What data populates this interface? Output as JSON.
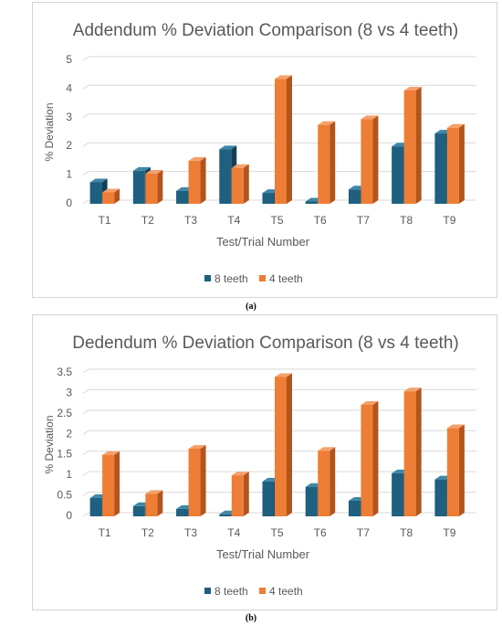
{
  "colors": {
    "series_8": "#1f5f7f",
    "series_8_side": "#123f56",
    "series_8_top": "#3f87a8",
    "series_4": "#ee7d35",
    "series_4_side": "#b3541b",
    "series_4_top": "#f4a26c",
    "grid": "#d9d9d9",
    "text": "#595959"
  },
  "chart_data": [
    {
      "type": "bar",
      "title": "Addendum % Deviation Comparison (8 vs 4 teeth)",
      "xlabel": "Test/Trial Number",
      "ylabel": "% Deviation",
      "categories": [
        "T1",
        "T2",
        "T3",
        "T4",
        "T5",
        "T6",
        "T7",
        "T8",
        "T9"
      ],
      "series": [
        {
          "name": "8 teeth",
          "values": [
            0.75,
            1.15,
            0.45,
            1.9,
            0.38,
            0.08,
            0.5,
            2.0,
            2.45
          ]
        },
        {
          "name": "4 teeth",
          "values": [
            0.4,
            1.05,
            1.5,
            1.25,
            4.35,
            2.75,
            2.95,
            3.95,
            2.65
          ]
        }
      ],
      "ylim": [
        0,
        5
      ],
      "yticks": [
        "0",
        "1",
        "2",
        "3",
        "4",
        "5"
      ],
      "grid": true,
      "legend": "bottom",
      "caption": "(a)"
    },
    {
      "type": "bar",
      "title": "Dedendum % Deviation Comparison (8 vs 4 teeth)",
      "xlabel": "Test/Trial Number",
      "ylabel": "% Deviation",
      "categories": [
        "T1",
        "T2",
        "T3",
        "T4",
        "T5",
        "T6",
        "T7",
        "T8",
        "T9"
      ],
      "series": [
        {
          "name": "8 teeth",
          "values": [
            0.45,
            0.25,
            0.18,
            0.05,
            0.85,
            0.72,
            0.38,
            1.05,
            0.9
          ]
        },
        {
          "name": "4 teeth",
          "values": [
            1.5,
            0.55,
            1.65,
            1.0,
            3.4,
            1.6,
            2.72,
            3.05,
            2.15
          ]
        }
      ],
      "ylim": [
        0,
        3.5
      ],
      "yticks": [
        "0",
        "0.5",
        "1",
        "1.5",
        "2",
        "2.5",
        "3",
        "3.5"
      ],
      "grid": true,
      "legend": "bottom",
      "caption": "(b)"
    }
  ]
}
